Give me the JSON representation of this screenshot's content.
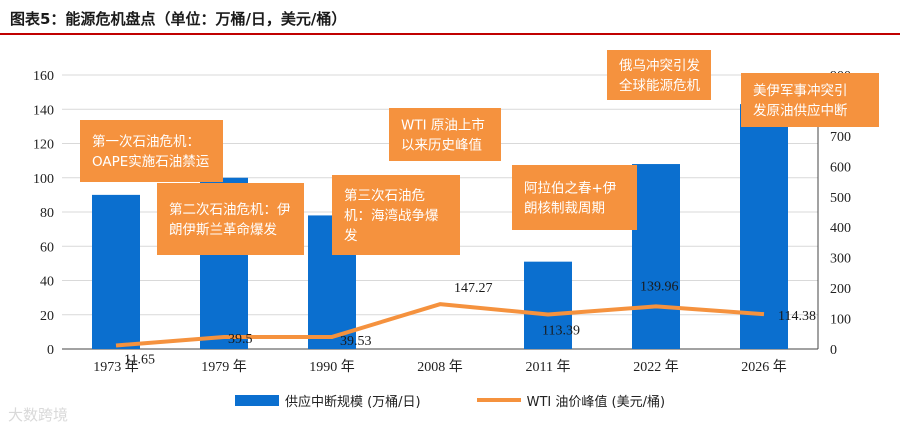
{
  "header": {
    "title": "图表5：能源危机盘点（单位：万桶/日，美元/桶）"
  },
  "chart_data": {
    "type": "bar",
    "categories": [
      "1973 年",
      "1979 年",
      "1990 年",
      "2008 年",
      "2011 年",
      "2022 年",
      "2026 年"
    ],
    "series": [
      {
        "name": "供应中断规模 (万桶/日)",
        "type": "bar",
        "axis": "left",
        "color": "#0b6fcf",
        "values": [
          90,
          100,
          78,
          null,
          51,
          108,
          143
        ]
      },
      {
        "name": "WTI 油价峰值 (美元/桶)",
        "type": "line",
        "axis": "right",
        "color": "#f5923e",
        "values": [
          11.65,
          39.5,
          39.53,
          147.27,
          113.39,
          139.96,
          114.38
        ],
        "labels": [
          "11.65",
          "39.5",
          "39.53",
          "147.27",
          "113.39",
          "139.96",
          "114.38"
        ]
      }
    ],
    "y_left": {
      "range": [
        0,
        160
      ],
      "ticks": [
        "0",
        "20",
        "40",
        "60",
        "80",
        "100",
        "120",
        "140",
        "160"
      ]
    },
    "y_right": {
      "range": [
        0,
        900
      ],
      "ticks": [
        "0",
        "100",
        "200",
        "300",
        "400",
        "500",
        "600",
        "700",
        "800",
        "900"
      ]
    },
    "grid": true,
    "legend_position": "bottom",
    "annotations": [
      {
        "lines": [
          "第一次石油危机：",
          "OAPE实施石油禁运"
        ]
      },
      {
        "lines": [
          "第二次石油危机：伊",
          "朗伊斯兰革命爆发"
        ]
      },
      {
        "lines": [
          "第三次石油危",
          "机：海湾战争爆",
          "发"
        ]
      },
      {
        "lines": [
          "WTI 原油上市",
          "以来历史峰值"
        ]
      },
      {
        "lines": [
          "阿拉伯之春+伊",
          "朗核制裁周期"
        ]
      },
      {
        "lines": [
          "俄乌冲突引发",
          "全球能源危机"
        ]
      },
      {
        "lines": [
          "美伊军事冲突引",
          "发原油供应中断"
        ]
      }
    ]
  },
  "legend": {
    "bar_label": "供应中断规模 (万桶/日)",
    "line_label": "WTI 油价峰值 (美元/桶)"
  },
  "watermark": "大数跨境"
}
